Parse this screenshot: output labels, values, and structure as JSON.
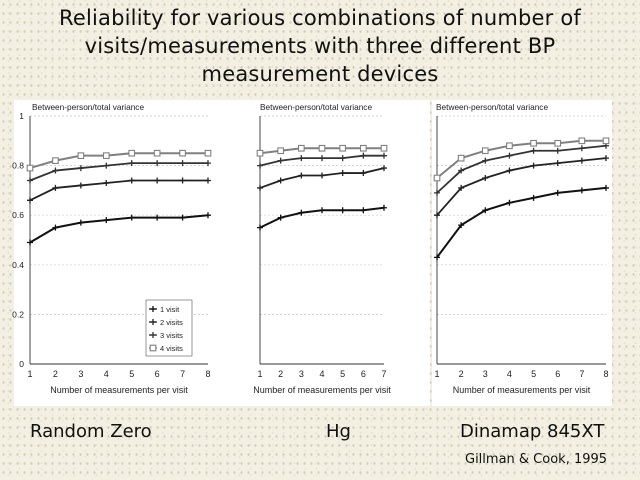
{
  "slide": {
    "title_lines": [
      "Reliability for various combinations of number of",
      "visits/measurements with three different BP",
      "measurement devices"
    ],
    "device_labels": [
      "Random Zero",
      "Hg",
      "Dinamap 845XT"
    ],
    "citation": "Gillman & Cook, 1995"
  },
  "colors": {
    "background": "#f3f0e3",
    "panel": "#ffffff",
    "gridline": "#c8c8c8",
    "series": [
      "#111111",
      "#222222",
      "#333333",
      "#808080"
    ]
  },
  "chart_data": [
    {
      "type": "line",
      "ylabel": "Between-person/total variance",
      "xlabel": "Number of measurements per visit",
      "x": [
        1,
        2,
        3,
        4,
        5,
        6,
        7,
        8
      ],
      "ylim": [
        0,
        1
      ],
      "yticks": [
        0,
        0.2,
        0.4,
        0.6,
        0.8,
        1
      ],
      "yticklabels": [
        "0",
        "0.2",
        "0.4",
        "0.6",
        "0.8",
        "1"
      ],
      "grid": "horizontal dashed",
      "legend_position": "bottom-right",
      "series": [
        {
          "name": "1 visit",
          "marker": "plus",
          "values": [
            0.49,
            0.55,
            0.57,
            0.58,
            0.59,
            0.59,
            0.59,
            0.6
          ]
        },
        {
          "name": "2 visits",
          "marker": "plus",
          "values": [
            0.66,
            0.71,
            0.72,
            0.73,
            0.74,
            0.74,
            0.74,
            0.74
          ]
        },
        {
          "name": "3 visits",
          "marker": "plus",
          "values": [
            0.74,
            0.78,
            0.79,
            0.8,
            0.81,
            0.81,
            0.81,
            0.81
          ]
        },
        {
          "name": "4 visits",
          "marker": "square",
          "values": [
            0.79,
            0.82,
            0.84,
            0.84,
            0.85,
            0.85,
            0.85,
            0.85
          ]
        }
      ]
    },
    {
      "type": "line",
      "ylabel": "Between-person/total variance",
      "xlabel": "Number of measurements per visit",
      "x": [
        1,
        2,
        3,
        4,
        5,
        6,
        7
      ],
      "ylim": [
        0,
        1
      ],
      "grid": "horizontal dashed",
      "series": [
        {
          "name": "1 visit",
          "marker": "plus",
          "values": [
            0.55,
            0.59,
            0.61,
            0.62,
            0.62,
            0.62,
            0.63
          ]
        },
        {
          "name": "2 visits",
          "marker": "plus",
          "values": [
            0.71,
            0.74,
            0.76,
            0.76,
            0.77,
            0.77,
            0.79
          ]
        },
        {
          "name": "3 visits",
          "marker": "plus",
          "values": [
            0.8,
            0.82,
            0.83,
            0.83,
            0.83,
            0.84,
            0.84
          ]
        },
        {
          "name": "4 visits",
          "marker": "square",
          "values": [
            0.85,
            0.86,
            0.87,
            0.87,
            0.87,
            0.87,
            0.87
          ]
        }
      ]
    },
    {
      "type": "line",
      "ylabel": "Between-person/total variance",
      "xlabel": "Number of measurements per visit",
      "x": [
        1,
        2,
        3,
        4,
        5,
        6,
        7,
        8
      ],
      "ylim": [
        0,
        1
      ],
      "grid": "horizontal dashed",
      "series": [
        {
          "name": "1 visit",
          "marker": "plus",
          "values": [
            0.43,
            0.56,
            0.62,
            0.65,
            0.67,
            0.69,
            0.7,
            0.71
          ]
        },
        {
          "name": "2 visits",
          "marker": "plus",
          "values": [
            0.6,
            0.71,
            0.75,
            0.78,
            0.8,
            0.81,
            0.82,
            0.83
          ]
        },
        {
          "name": "3 visits",
          "marker": "plus",
          "values": [
            0.69,
            0.78,
            0.82,
            0.84,
            0.86,
            0.86,
            0.87,
            0.88
          ]
        },
        {
          "name": "4 visits",
          "marker": "square",
          "values": [
            0.75,
            0.83,
            0.86,
            0.88,
            0.89,
            0.89,
            0.9,
            0.9
          ]
        }
      ]
    }
  ]
}
